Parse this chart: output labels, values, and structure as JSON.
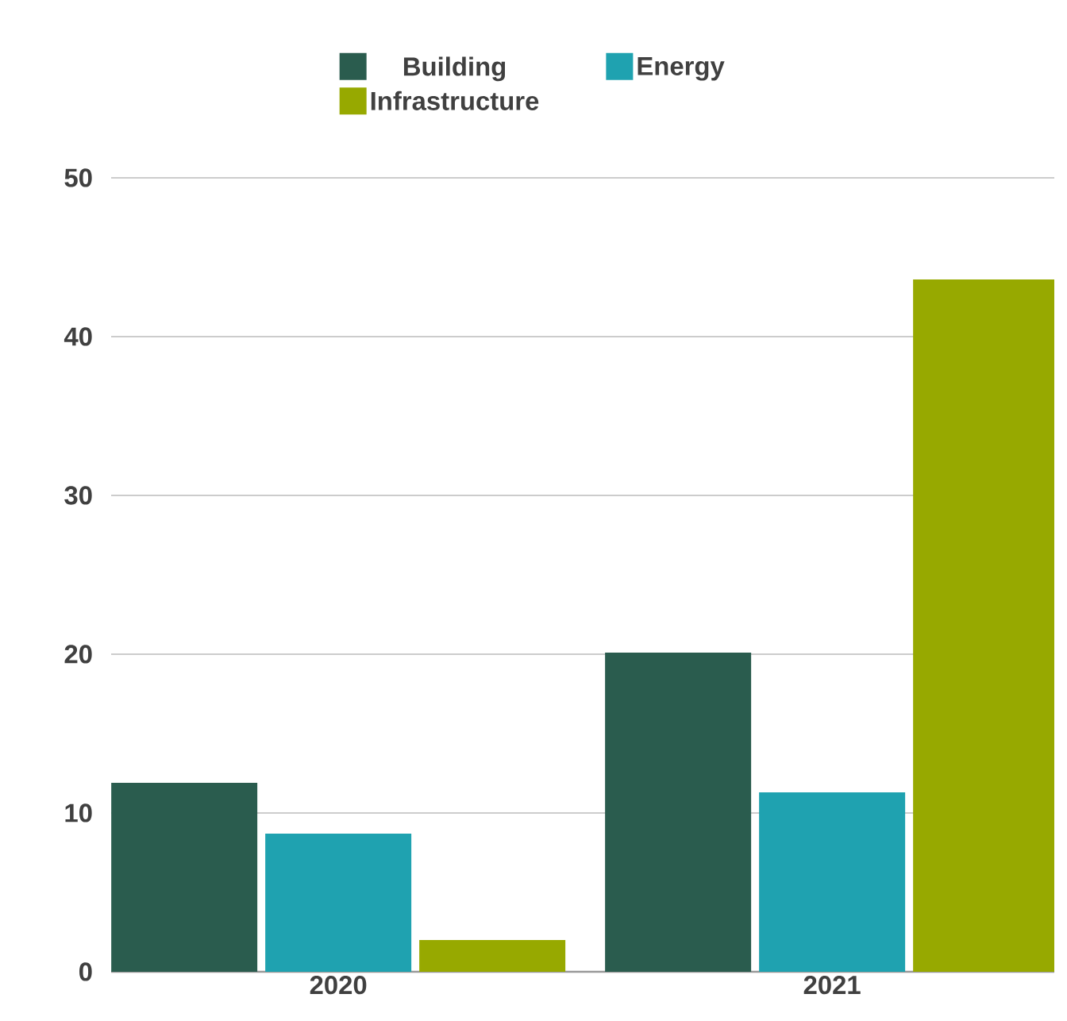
{
  "chart_data": {
    "type": "bar",
    "categories": [
      "2020",
      "2021"
    ],
    "series": [
      {
        "name": "Building",
        "color": "#2a5c4e",
        "values": [
          11.9,
          20.1
        ]
      },
      {
        "name": "Energy",
        "color": "#1fa2b0",
        "values": [
          8.7,
          11.3
        ]
      },
      {
        "name": "Infrastructure",
        "color": "#97a900",
        "values": [
          2.0,
          43.6
        ]
      }
    ],
    "ylim": [
      0,
      50
    ],
    "yticks": [
      0,
      10,
      20,
      30,
      40,
      50
    ],
    "grid": "y",
    "legend": "top"
  }
}
